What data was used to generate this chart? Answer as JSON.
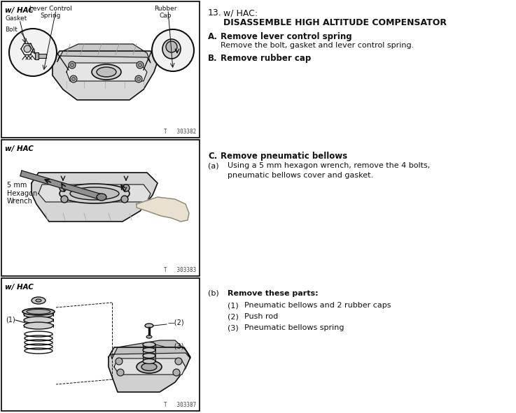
{
  "bg_color": "#ffffff",
  "title_num": "13.",
  "title_hac": "w/ HAC:",
  "title_main": "DISASSEMBLE HIGH ALTITUDE COMPENSATOR",
  "section_A_label": "A.",
  "section_A_head": "Remove lever control spring",
  "section_A_body": "Remove the bolt, gasket and lever control spring.",
  "section_B_label": "B.",
  "section_B_head": "Remove rubber cap",
  "section_C_label": "C.",
  "section_C_head": "Remove pneumatic bellows",
  "section_Ca_label": "(a)",
  "section_Ca_body1": "Using a 5 mm hexagon wrench, remove the 4 bolts,",
  "section_Ca_body2": "pneumatic bellows cover and gasket.",
  "section_Cb_label": "(b)",
  "section_Cb_body": "Remove these parts:",
  "item1_num": "(1)",
  "item1_text": "Pneumatic bellows and 2 rubber caps",
  "item2_num": "(2)",
  "item2_text": "Push rod",
  "item3_num": "(3)",
  "item3_text": "Pneumatic bellows spring",
  "box1_label": "w/ HAC",
  "box2_label": "w/ HAC",
  "box3_label": "w/ HAC",
  "fig1_num": "T   303382",
  "fig2_num": "T   303383",
  "fig3_num": "T   303387",
  "label_gasket": "Gasket",
  "label_bolt": "Bolt",
  "label_lever": "Lever Control\nSpring",
  "label_rubber": "Rubber\nCap",
  "label_wrench": "5 mm\nHexagon\nWrench",
  "box_outline_color": "#000000",
  "text_color": "#000000",
  "lc_color": "#111111",
  "img_bg": "#f0f0f0"
}
